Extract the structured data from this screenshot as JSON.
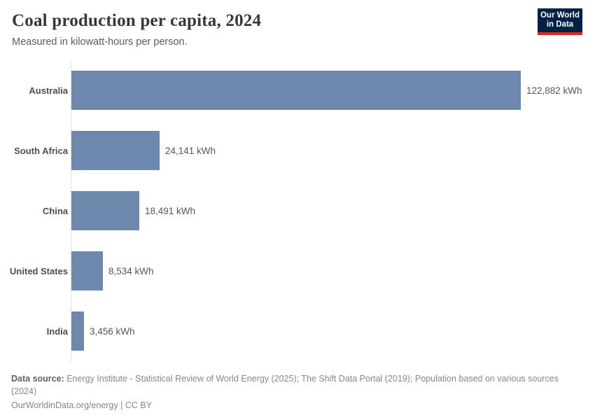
{
  "header": {
    "title": "Coal production per capita, 2024",
    "subtitle": "Measured in kilowatt-hours per person.",
    "logo": {
      "line1": "Our World",
      "line2": "in Data",
      "bg_color": "#002147",
      "accent_color": "#d42b21"
    }
  },
  "chart_data": {
    "type": "bar",
    "orientation": "horizontal",
    "title": "Coal production per capita, 2024",
    "subtitle": "Measured in kilowatt-hours per person.",
    "categories": [
      "Australia",
      "South Africa",
      "China",
      "United States",
      "India"
    ],
    "values": [
      122882,
      24141,
      18491,
      8534,
      3456
    ],
    "value_labels": [
      "122,882 kWh",
      "24,141 kWh",
      "18,491 kWh",
      "8,534 kWh",
      "3,456 kWh"
    ],
    "unit": "kWh",
    "xlim": [
      0,
      122882
    ],
    "bar_color": "#6e87ad",
    "grid": false,
    "legend": "none"
  },
  "footer": {
    "source_label": "Data source:",
    "source_text": " Energy Institute - Statistical Review of World Energy (2025); The Shift Data Portal (2019); Population based on various sources (2024)",
    "link_text": "OurWorldinData.org/energy",
    "separator": " | ",
    "license": "CC BY"
  }
}
